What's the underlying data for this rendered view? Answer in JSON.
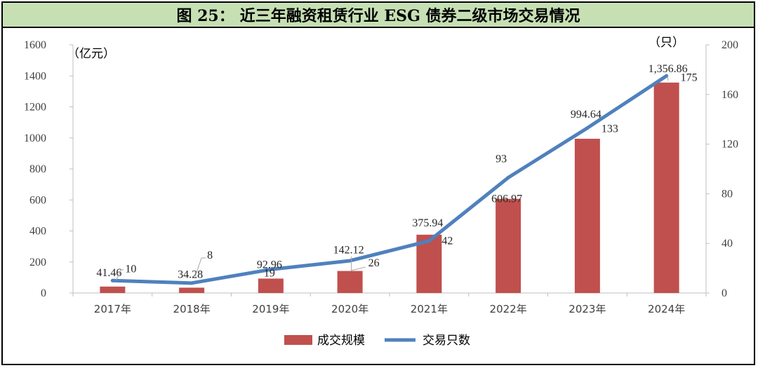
{
  "title": {
    "label": "图 25：",
    "text": "近三年融资租赁行业 ESG 债券二级市场交易情况"
  },
  "colors": {
    "bar": "#c0504d",
    "line": "#4f81bd",
    "title_bg": "#c6e0b4"
  },
  "chart_data": {
    "type": "bar+line",
    "categories": [
      "2017年",
      "2018年",
      "2019年",
      "2020年",
      "2021年",
      "2022年",
      "2023年",
      "2024年"
    ],
    "series": [
      {
        "name": "成交规模",
        "type": "bar",
        "axis": "left",
        "values": [
          41.46,
          34.28,
          92.96,
          142.12,
          375.94,
          606.97,
          994.64,
          1356.86
        ],
        "labels": [
          "41.46",
          "34.28",
          "92.96",
          "142.12",
          "375.94",
          "606.97",
          "994.64",
          "1,356.86"
        ]
      },
      {
        "name": "交易只数",
        "type": "line",
        "axis": "right",
        "values": [
          10,
          8,
          19,
          26,
          42,
          93,
          133,
          175
        ],
        "labels": [
          "10",
          "8",
          "19",
          "26",
          "42",
          "93",
          "133",
          "175"
        ]
      }
    ],
    "y_left": {
      "unit": "（亿元）",
      "min": 0,
      "max": 1600,
      "ticks": [
        "0",
        "200",
        "400",
        "600",
        "800",
        "1000",
        "1200",
        "1400",
        "1600"
      ]
    },
    "y_right": {
      "unit": "（只）",
      "min": 0,
      "max": 200,
      "ticks": [
        "0",
        "40",
        "80",
        "120",
        "160",
        "200"
      ]
    },
    "legend": {
      "position": "bottom"
    }
  }
}
